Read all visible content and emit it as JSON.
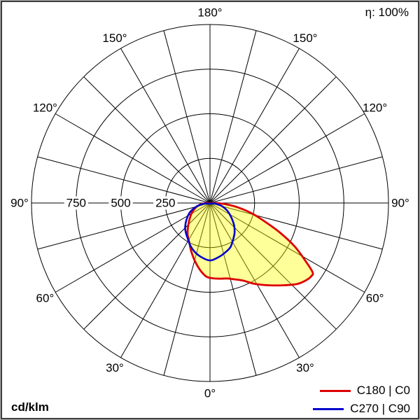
{
  "header": {
    "efficiency": "η: 100%"
  },
  "footer": {
    "unit": "cd/klm"
  },
  "legend": {
    "items": [
      {
        "label": "C180 | C0",
        "color": "#dd0000"
      },
      {
        "label": "C270 | C90",
        "color": "#0000cc"
      }
    ]
  },
  "chart_data": {
    "type": "polar",
    "subtype": "photometric-intensity-distribution",
    "unit": "cd/klm",
    "efficiency": "η: 100%",
    "angle_label_texts": [
      "0°",
      "30°",
      "60°",
      "90°",
      "120°",
      "150°",
      "180°"
    ],
    "angle_label_step_deg": 30,
    "spoke_step_deg": 15,
    "radial_ticks": [
      250,
      500,
      750
    ],
    "radial_tick_labels": [
      "250",
      "500",
      "750"
    ],
    "r_max": 1000,
    "grid_color": "#000000",
    "series": [
      {
        "name": "C180 | C0",
        "color": "#dd0000",
        "fill": "#ffff00",
        "fill_opacity": 0.4,
        "stroke_width": 2.8,
        "points_deg_cd": [
          [
            -88,
            30
          ],
          [
            -80,
            60
          ],
          [
            -70,
            90
          ],
          [
            -60,
            120
          ],
          [
            -50,
            152
          ],
          [
            -42,
            185
          ],
          [
            -35,
            218
          ],
          [
            -28,
            248
          ],
          [
            -21,
            292
          ],
          [
            -14,
            340
          ],
          [
            -8,
            382
          ],
          [
            -3,
            412
          ],
          [
            2,
            422
          ],
          [
            8,
            428
          ],
          [
            13,
            434
          ],
          [
            18,
            450
          ],
          [
            23,
            472
          ],
          [
            29,
            518
          ],
          [
            36,
            570
          ],
          [
            42,
            620
          ],
          [
            47,
            666
          ],
          [
            51,
            690
          ],
          [
            54,
            700
          ],
          [
            56,
            693
          ],
          [
            59,
            620
          ],
          [
            63,
            530
          ],
          [
            67,
            427
          ],
          [
            71,
            331
          ],
          [
            76,
            242
          ],
          [
            81,
            160
          ],
          [
            85,
            95
          ],
          [
            88,
            50
          ],
          [
            90,
            22
          ]
        ]
      },
      {
        "name": "C270 | C90",
        "color": "#0000cc",
        "fill": "none",
        "fill_opacity": 0,
        "stroke_width": 2.6,
        "points_deg_cd": [
          [
            -85,
            35
          ],
          [
            -75,
            80
          ],
          [
            -65,
            125
          ],
          [
            -55,
            160
          ],
          [
            -47,
            190
          ],
          [
            -40,
            212
          ],
          [
            -33,
            232
          ],
          [
            -25,
            262
          ],
          [
            -18,
            285
          ],
          [
            -10,
            305
          ],
          [
            0,
            322
          ],
          [
            10,
            305
          ],
          [
            18,
            288
          ],
          [
            25,
            272
          ],
          [
            33,
            240
          ],
          [
            40,
            215
          ],
          [
            47,
            185
          ],
          [
            55,
            148
          ],
          [
            65,
            110
          ],
          [
            75,
            70
          ],
          [
            85,
            32
          ]
        ]
      }
    ]
  }
}
